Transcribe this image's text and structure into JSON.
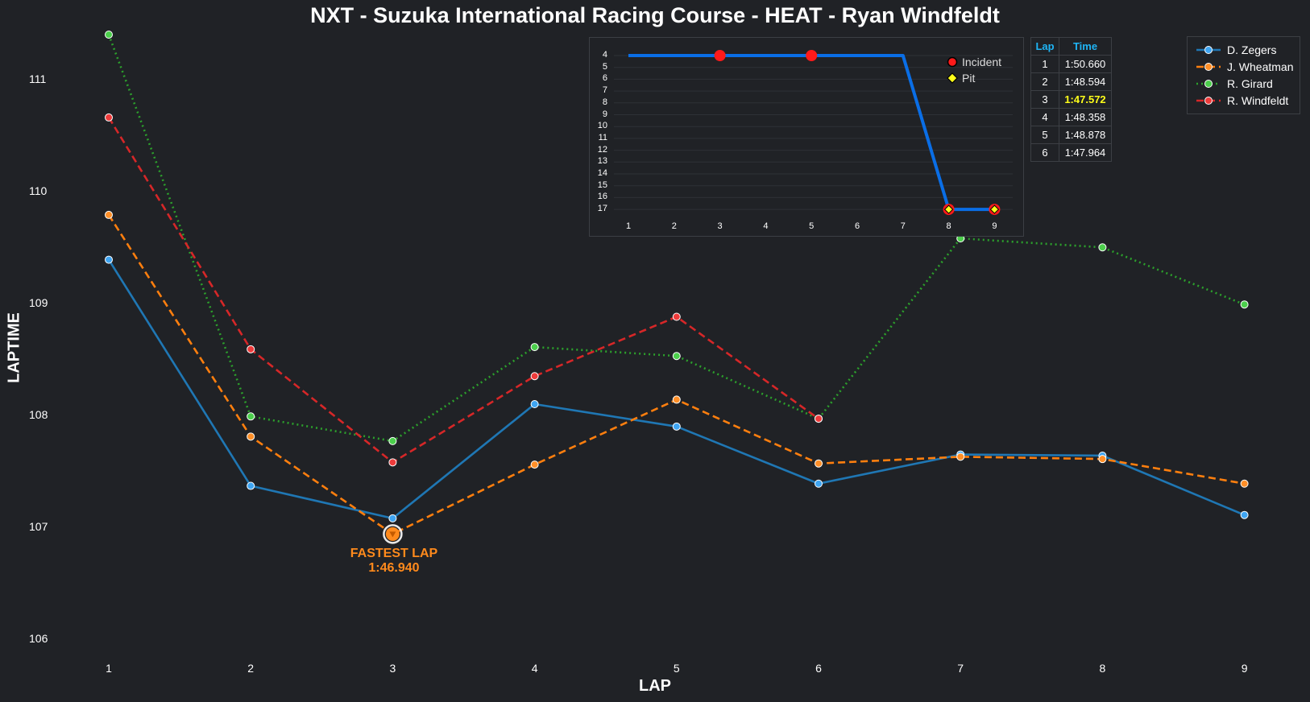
{
  "chart_data": [
    {
      "type": "line",
      "title": "NXT - Suzuka International Racing Course - HEAT - Ryan Windfeldt",
      "xlabel": "LAP",
      "ylabel": "LAPTIME",
      "x": [
        1,
        2,
        3,
        4,
        5,
        6,
        7,
        8,
        9
      ],
      "xticks": [
        "1",
        "2",
        "3",
        "4",
        "5",
        "6",
        "7",
        "8",
        "9"
      ],
      "ylim": [
        105.9,
        111.4
      ],
      "yticks": [
        106,
        107,
        108,
        109,
        110,
        111
      ],
      "grid": false,
      "legend_position": "top-right",
      "series": [
        {
          "name": "D. Zegers",
          "color": "#1f77b4",
          "marker_color": "#3fa5f2",
          "style": "solid",
          "values": [
            109.39,
            107.37,
            107.08,
            108.1,
            107.9,
            107.39,
            107.65,
            107.64,
            107.11
          ]
        },
        {
          "name": "J. Wheatman",
          "color": "#ff7f0e",
          "marker_color": "#ff8f28",
          "style": "dashed",
          "values": [
            109.79,
            107.81,
            106.94,
            107.56,
            108.14,
            107.57,
            107.63,
            107.61,
            107.39
          ]
        },
        {
          "name": "R. Girard",
          "color": "#2ca02c",
          "marker_color": "#4ccf4c",
          "style": "dotted",
          "values": [
            111.4,
            107.99,
            107.77,
            108.61,
            108.53,
            107.97,
            109.58,
            109.5,
            108.99
          ]
        },
        {
          "name": "R. Windfeldt",
          "color": "#d62728",
          "marker_color": "#ee3b3b",
          "style": "dashed",
          "values": [
            110.66,
            108.59,
            107.58,
            108.35,
            108.88,
            107.97,
            null,
            null,
            null
          ]
        }
      ],
      "annotations": [
        {
          "x": 3,
          "y": 106.94,
          "series": "J. Wheatman",
          "label": "FASTEST LAP",
          "value": "1:46.940",
          "color": "#ff8a1c"
        }
      ]
    },
    {
      "type": "line",
      "title": "",
      "x": [
        1,
        2,
        3,
        4,
        5,
        6,
        7,
        8,
        9
      ],
      "xticks": [
        "1",
        "2",
        "3",
        "4",
        "5",
        "6",
        "7",
        "8",
        "9"
      ],
      "yticks": [
        "4",
        "5",
        "6",
        "7",
        "8",
        "9",
        "10",
        "11",
        "12",
        "13",
        "14",
        "15",
        "16",
        "17"
      ],
      "ylim": [
        17,
        4
      ],
      "inverted_y": true,
      "grid": true,
      "legend_position": "top-right",
      "series": [
        {
          "name": "Position",
          "color": "#0a6ee6",
          "values": [
            4,
            4,
            4,
            4,
            4,
            4,
            4,
            17,
            17
          ]
        }
      ],
      "incidents": [
        {
          "x": 3,
          "y": 4
        },
        {
          "x": 5,
          "y": 4
        }
      ],
      "pits": [
        {
          "x": 8,
          "y": 17
        },
        {
          "x": 9,
          "y": 17
        }
      ],
      "legend": [
        {
          "label": "Incident",
          "marker": "circle",
          "color": "#ff1a1a"
        },
        {
          "label": "Pit",
          "marker": "diamond",
          "color": "#ffff1a"
        }
      ]
    },
    {
      "type": "table",
      "headers": [
        "Lap",
        "Time"
      ],
      "rows": [
        [
          "1",
          "1:50.660"
        ],
        [
          "2",
          "1:48.594"
        ],
        [
          "3",
          "1:47.572"
        ],
        [
          "4",
          "1:48.358"
        ],
        [
          "5",
          "1:48.878"
        ],
        [
          "6",
          "1:47.964"
        ]
      ],
      "highlight_row": 2,
      "header_color": "#1fb5f5",
      "highlight_color": "#ffff1a"
    }
  ]
}
